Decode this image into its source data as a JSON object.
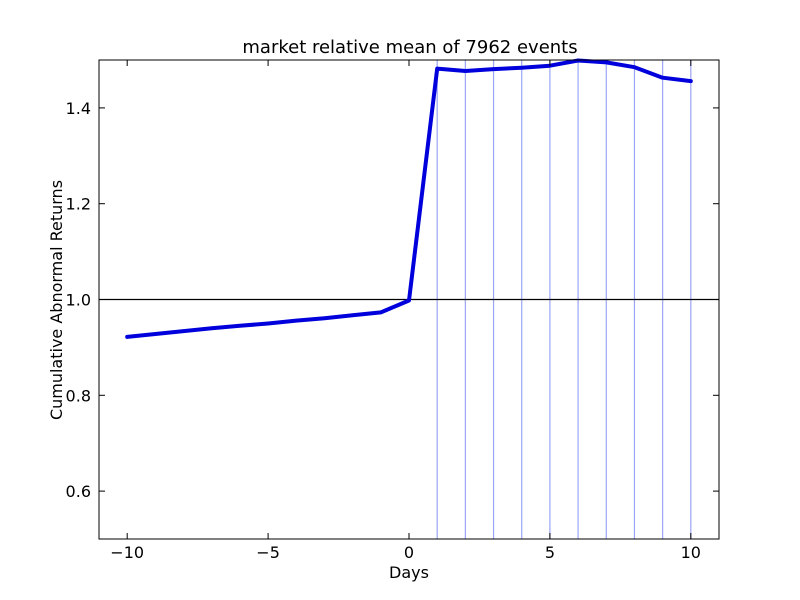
{
  "chart_data": {
    "type": "line",
    "title": "market relative mean of 7962 events",
    "xlabel": "Days",
    "ylabel": "Cumulative Abnormal Returns",
    "xlim": [
      -11,
      11
    ],
    "ylim": [
      0.5,
      1.5
    ],
    "xticks": [
      -10,
      -5,
      0,
      5,
      10
    ],
    "xtick_labels": [
      "−10",
      "−5",
      "0",
      "5",
      "10"
    ],
    "yticks": [
      0.6,
      0.8,
      1.0,
      1.2,
      1.4
    ],
    "ytick_labels": [
      "0.6",
      "0.8",
      "1.0",
      "1.2",
      "1.4"
    ],
    "grid": false,
    "legend": "none",
    "series": [
      {
        "color": "#0000dd",
        "x": [
          -10,
          -9,
          -8,
          -7,
          -6,
          -5,
          -4,
          -3,
          -2,
          -1,
          0,
          1,
          2,
          3,
          4,
          5,
          6,
          7,
          8,
          9,
          10
        ],
        "y": [
          0.922,
          0.928,
          0.934,
          0.94,
          0.945,
          0.95,
          0.956,
          0.961,
          0.967,
          0.973,
          0.998,
          1.482,
          1.477,
          1.481,
          1.484,
          1.488,
          1.499,
          1.495,
          1.485,
          1.463,
          1.456
        ]
      }
    ],
    "hline": {
      "y": 1.0,
      "color": "#000000"
    },
    "vlines": {
      "x": [
        1,
        2,
        3,
        4,
        5,
        6,
        7,
        8,
        9,
        10
      ],
      "color": "#9aa5f5"
    }
  }
}
